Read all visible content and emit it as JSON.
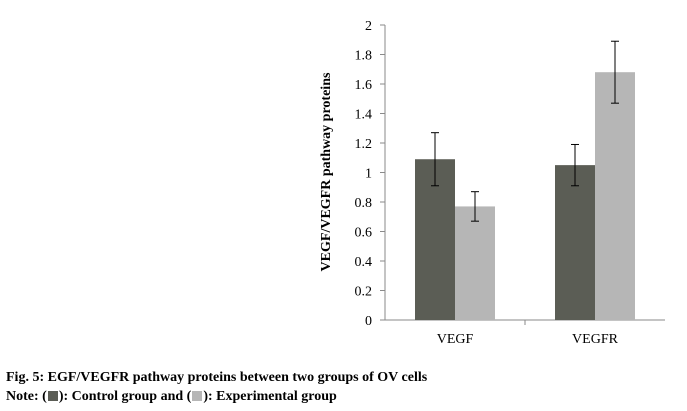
{
  "chart_data": {
    "type": "bar",
    "categories": [
      "VEGF",
      "VEGFR"
    ],
    "series": [
      {
        "values": [
          1.09,
          1.05
        ],
        "errors": [
          0.18,
          0.14
        ],
        "color": "#5b5d55"
      },
      {
        "values": [
          0.77,
          1.68
        ],
        "errors": [
          0.1,
          0.21
        ],
        "color": "#b6b6b6"
      }
    ],
    "ylabel": "VEGF/VEGFR pathway proteins",
    "xlabel": "",
    "ylim": [
      0,
      2
    ],
    "yticks": [
      "0",
      "0.2",
      "0.4",
      "0.6",
      "0.8",
      "1",
      "1.2",
      "1.4",
      "1.6",
      "1.8",
      "2"
    ],
    "grid": false
  },
  "caption": {
    "title": "Fig. 5: EGF/VEGFR pathway proteins between two groups of OV cells",
    "note_prefix": "Note: (",
    "note_control": "): Control group and (",
    "note_experimental": "): Experimental group"
  }
}
